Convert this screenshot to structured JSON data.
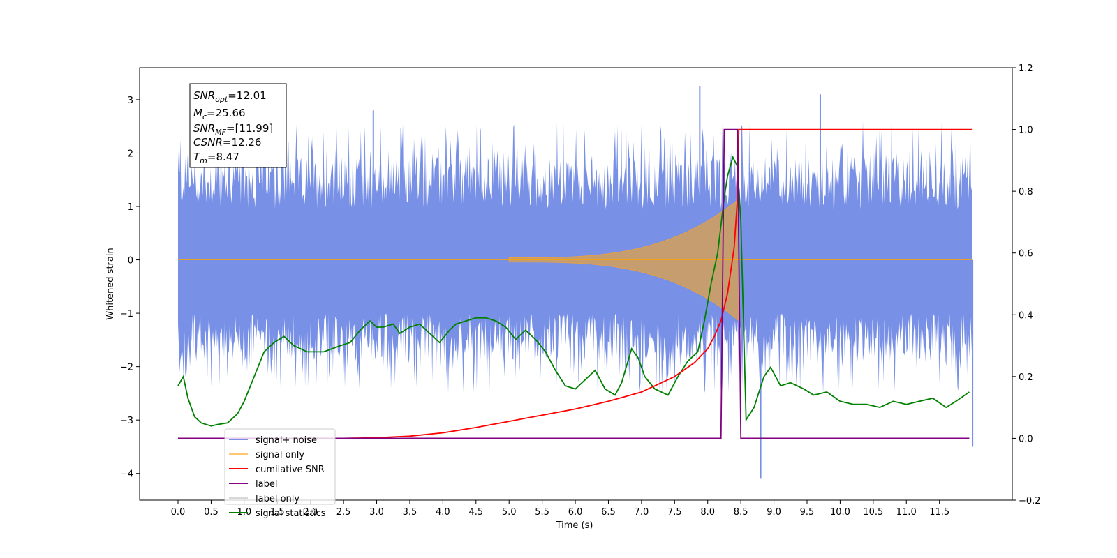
{
  "chart_data": {
    "type": "line",
    "xlabel": "Time (s)",
    "ylabel": "Whitened strain",
    "xlim": [
      -0.58,
      12.6
    ],
    "ylim": [
      -4.5,
      3.6
    ],
    "y2lim": [
      -0.2,
      1.2
    ],
    "x_ticks": [
      "0.0",
      "0.5",
      "1.0",
      "1.5",
      "2.0",
      "2.5",
      "3.0",
      "3.5",
      "4.0",
      "4.5",
      "5.0",
      "5.5",
      "6.0",
      "6.5",
      "7.0",
      "7.5",
      "8.0",
      "8.5",
      "9.0",
      "9.5",
      "10.0",
      "10.5",
      "11.0",
      "11.5"
    ],
    "y_ticks": [
      "3",
      "2",
      "1",
      "0",
      "−1",
      "−2",
      "−3",
      "−4"
    ],
    "y2_ticks": [
      "1.2",
      "1.0",
      "0.8",
      "0.6",
      "0.4",
      "0.2",
      "0.0",
      "−0.2"
    ],
    "grid": false,
    "legend_position": "lower-left",
    "annotation": {
      "snr_opt": "=12.01",
      "mc": "=25.66",
      "snr_mf": "=[11.99]",
      "csnr": "=12.26",
      "tm": "=8.47"
    },
    "series": [
      {
        "name": "signal+ noise",
        "color": "#4169e1",
        "axis": "left",
        "description_range": [
          -2.5,
          2.6
        ],
        "duration": 12.0,
        "peaks": [
          [
            2.95,
            2.8
          ],
          [
            7.88,
            3.25
          ],
          [
            8.8,
            -4.1
          ],
          [
            9.7,
            3.1
          ],
          [
            12.0,
            -3.5
          ]
        ]
      },
      {
        "name": "signal only",
        "color": "#ffa500",
        "axis": "left",
        "chirp_end": 8.47,
        "max_amplitude": 1.1
      },
      {
        "name": "cumilative SNR",
        "color": "#ff0000",
        "axis": "right",
        "x": [
          0.0,
          1.0,
          2.0,
          2.5,
          3.0,
          3.5,
          4.0,
          4.5,
          5.0,
          5.5,
          6.0,
          6.5,
          7.0,
          7.5,
          7.8,
          8.0,
          8.1,
          8.2,
          8.3,
          8.4,
          8.45,
          8.47,
          12.0
        ],
        "values": [
          0.0,
          0.0,
          0.0,
          0.0,
          0.002,
          0.007,
          0.018,
          0.035,
          0.055,
          0.075,
          0.095,
          0.12,
          0.15,
          0.2,
          0.245,
          0.29,
          0.33,
          0.38,
          0.47,
          0.62,
          0.78,
          1.0,
          1.0
        ]
      },
      {
        "name": "label",
        "color": "#800080",
        "axis": "right",
        "x": [
          0.0,
          8.2,
          8.25,
          8.45,
          8.5,
          11.95
        ],
        "values": [
          0.0,
          0.0,
          1.0,
          1.0,
          0.0,
          0.0
        ]
      },
      {
        "name": "label only",
        "color": "#d8d8d8",
        "axis": "right"
      },
      {
        "name": "signal statistics",
        "color": "#008000",
        "axis": "right",
        "x": [
          0.0,
          0.08,
          0.15,
          0.25,
          0.35,
          0.5,
          0.6,
          0.75,
          0.9,
          1.0,
          1.15,
          1.3,
          1.45,
          1.6,
          1.75,
          1.95,
          2.2,
          2.45,
          2.6,
          2.75,
          2.9,
          3.0,
          3.1,
          3.25,
          3.35,
          3.5,
          3.65,
          3.8,
          3.95,
          4.1,
          4.2,
          4.35,
          4.5,
          4.65,
          4.8,
          4.95,
          5.1,
          5.25,
          5.4,
          5.55,
          5.7,
          5.85,
          6.0,
          6.15,
          6.3,
          6.45,
          6.6,
          6.7,
          6.85,
          6.95,
          7.05,
          7.2,
          7.4,
          7.55,
          7.7,
          7.85,
          7.95,
          8.05,
          8.15,
          8.25,
          8.3,
          8.38,
          8.45,
          8.5,
          8.58,
          8.7,
          8.85,
          8.95,
          9.1,
          9.25,
          9.45,
          9.6,
          9.8,
          10.0,
          10.2,
          10.4,
          10.6,
          10.8,
          11.0,
          11.2,
          11.4,
          11.6,
          11.75,
          11.95
        ],
        "values": [
          0.17,
          0.2,
          0.13,
          0.07,
          0.05,
          0.04,
          0.045,
          0.05,
          0.08,
          0.12,
          0.2,
          0.28,
          0.31,
          0.33,
          0.3,
          0.28,
          0.28,
          0.3,
          0.31,
          0.35,
          0.38,
          0.36,
          0.36,
          0.37,
          0.34,
          0.36,
          0.37,
          0.34,
          0.31,
          0.35,
          0.37,
          0.38,
          0.39,
          0.39,
          0.38,
          0.36,
          0.32,
          0.35,
          0.32,
          0.28,
          0.22,
          0.17,
          0.16,
          0.19,
          0.22,
          0.16,
          0.14,
          0.18,
          0.29,
          0.26,
          0.2,
          0.16,
          0.14,
          0.2,
          0.25,
          0.28,
          0.38,
          0.5,
          0.6,
          0.78,
          0.85,
          0.91,
          0.88,
          0.7,
          0.06,
          0.1,
          0.2,
          0.23,
          0.17,
          0.18,
          0.16,
          0.14,
          0.15,
          0.12,
          0.11,
          0.11,
          0.1,
          0.12,
          0.11,
          0.12,
          0.13,
          0.1,
          0.12,
          0.15
        ]
      }
    ]
  }
}
